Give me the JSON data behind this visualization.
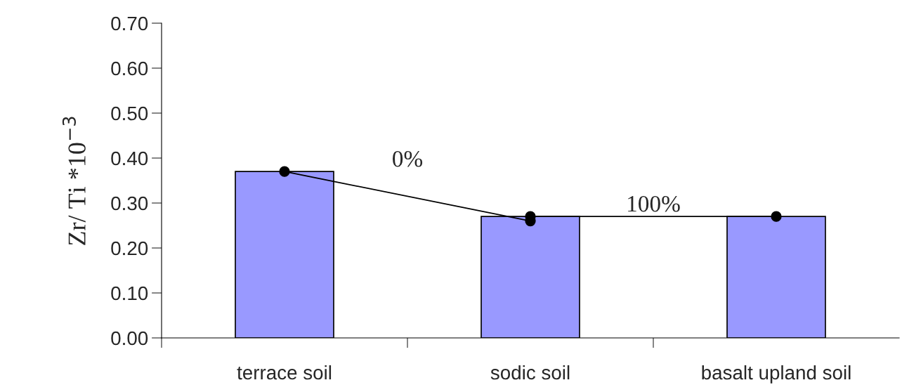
{
  "chart_data": {
    "type": "bar",
    "ylabel": "Zr/ Ti *10$^{−3}$",
    "categories": [
      "terrace soil",
      "sodic soil",
      "basalt upland soil"
    ],
    "series": [
      {
        "color": "#9999ff",
        "values": [
          0.37,
          0.27,
          0.27
        ]
      },
      {
        "type": "line",
        "color": "#000000",
        "values": [
          0.37,
          0.26,
          null
        ],
        "marker": "circle"
      },
      {
        "type": "line",
        "color": "#000000",
        "values": [
          null,
          0.27,
          0.27
        ],
        "marker": "circle"
      }
    ],
    "annotations": [
      "0%",
      "100%"
    ],
    "ylim": [
      0,
      0.7
    ],
    "yticks": [
      {
        "value": 0,
        "label": "0.00"
      },
      {
        "value": 0.1,
        "label": "0.10"
      },
      {
        "value": 0.2,
        "label": "0.20"
      },
      {
        "value": 0.3,
        "label": "0.30"
      },
      {
        "value": 0.4,
        "label": "0.40"
      },
      {
        "value": 0.5,
        "label": "0.50"
      },
      {
        "value": 0.6,
        "label": "0.60"
      },
      {
        "value": 0.7,
        "label": "0.70"
      }
    ],
    "grid": false,
    "legend": false
  }
}
